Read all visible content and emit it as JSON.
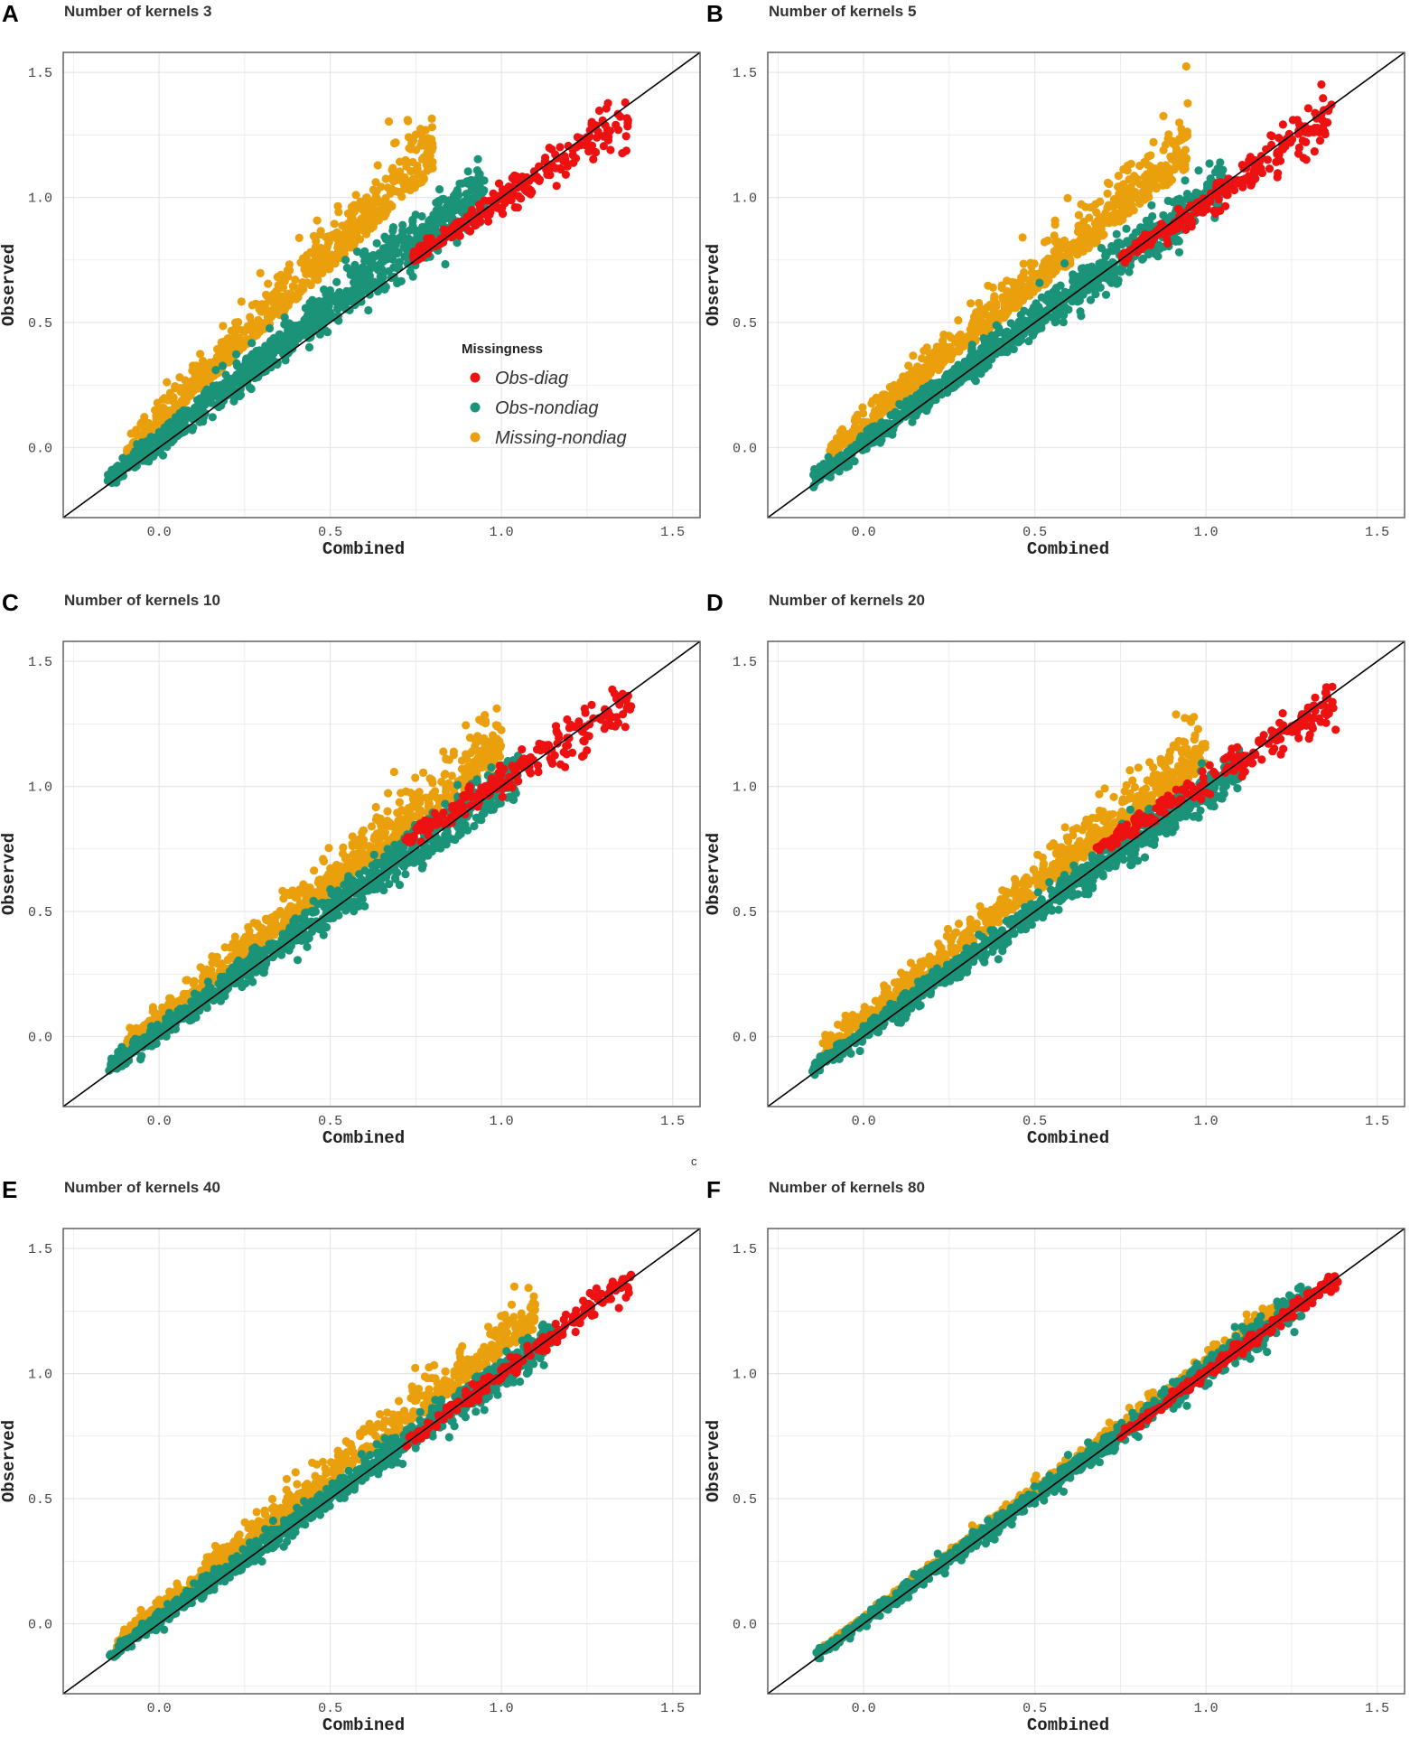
{
  "colors": {
    "obs_diag": "#ee1111",
    "obs_nondiag": "#1a9378",
    "missing_nondiag": "#eaa00c",
    "identity_line": "#000000",
    "grid": "#e6e6e6",
    "frame": "#555555"
  },
  "legend": {
    "title": "Missingness",
    "entries": [
      "Obs-diag",
      "Obs-nondiag",
      "Missing-nondiag"
    ]
  },
  "stray_mark": "c",
  "chart_data": [
    {
      "type": "scatter",
      "panel": "A",
      "title": "Number of kernels 3",
      "xlabel": "Combined",
      "ylabel": "Observed",
      "xlim": [
        -0.28,
        1.58
      ],
      "ylim": [
        -0.28,
        1.58
      ],
      "xticks": [
        "0.0",
        "0.5",
        "1.0",
        "1.5"
      ],
      "yticks": [
        "0.0",
        "0.5",
        "1.0",
        "1.5"
      ],
      "identity_line": true,
      "grid": true,
      "legend": "middle-right",
      "series": [
        {
          "name": "Obs-diag",
          "x_range": [
            0.74,
            1.37
          ],
          "y_center": [
            0.76,
            1.32
          ],
          "spread": 0.04
        },
        {
          "name": "Obs-nondiag",
          "x_range": [
            -0.15,
            0.95
          ],
          "y_center": [
            -0.13,
            1.04
          ],
          "spread": 0.05
        },
        {
          "name": "Missing-nondiag",
          "x_range": [
            -0.1,
            0.8
          ],
          "y_center": [
            -0.05,
            1.1
          ],
          "spread": 0.09
        }
      ]
    },
    {
      "type": "scatter",
      "panel": "B",
      "title": "Number of kernels 5",
      "xlabel": "Combined",
      "ylabel": "Observed",
      "xlim": [
        -0.28,
        1.58
      ],
      "ylim": [
        -0.28,
        1.58
      ],
      "xticks": [
        "0.0",
        "0.5",
        "1.0",
        "1.5"
      ],
      "yticks": [
        "0.0",
        "0.5",
        "1.0",
        "1.5"
      ],
      "identity_line": true,
      "grid": true,
      "series": [
        {
          "name": "Obs-diag",
          "x_range": [
            0.75,
            1.37
          ],
          "y_center": [
            0.75,
            1.33
          ],
          "spread": 0.04
        },
        {
          "name": "Obs-nondiag",
          "x_range": [
            -0.15,
            1.05
          ],
          "y_center": [
            -0.13,
            1.05
          ],
          "spread": 0.04
        },
        {
          "name": "Missing-nondiag",
          "x_range": [
            -0.1,
            0.95
          ],
          "y_center": [
            -0.05,
            1.12
          ],
          "spread": 0.09
        }
      ]
    },
    {
      "type": "scatter",
      "panel": "C",
      "title": "Number of kernels 10",
      "xlabel": "Combined",
      "ylabel": "Observed",
      "xlim": [
        -0.28,
        1.58
      ],
      "ylim": [
        -0.28,
        1.58
      ],
      "xticks": [
        "0.0",
        "0.5",
        "1.0",
        "1.5"
      ],
      "yticks": [
        "0.0",
        "0.5",
        "1.0",
        "1.5"
      ],
      "identity_line": true,
      "grid": true,
      "series": [
        {
          "name": "Obs-diag",
          "x_range": [
            0.72,
            1.38
          ],
          "y_center": [
            0.78,
            1.34
          ],
          "spread": 0.04
        },
        {
          "name": "Obs-nondiag",
          "x_range": [
            -0.15,
            1.05
          ],
          "y_center": [
            -0.13,
            1.05
          ],
          "spread": 0.04
        },
        {
          "name": "Missing-nondiag",
          "x_range": [
            -0.1,
            1.0
          ],
          "y_center": [
            -0.06,
            1.1
          ],
          "spread": 0.08
        }
      ]
    },
    {
      "type": "scatter",
      "panel": "D",
      "title": "Number of kernels 20",
      "xlabel": "Combined",
      "ylabel": "Observed",
      "xlim": [
        -0.28,
        1.58
      ],
      "ylim": [
        -0.28,
        1.58
      ],
      "xticks": [
        "0.0",
        "0.5",
        "1.0",
        "1.5"
      ],
      "yticks": [
        "0.0",
        "0.5",
        "1.0",
        "1.5"
      ],
      "identity_line": true,
      "grid": true,
      "series": [
        {
          "name": "Obs-diag",
          "x_range": [
            0.68,
            1.38
          ],
          "y_center": [
            0.75,
            1.34
          ],
          "spread": 0.035
        },
        {
          "name": "Obs-nondiag",
          "x_range": [
            -0.15,
            1.1
          ],
          "y_center": [
            -0.13,
            1.08
          ],
          "spread": 0.035
        },
        {
          "name": "Missing-nondiag",
          "x_range": [
            -0.12,
            1.0
          ],
          "y_center": [
            -0.08,
            1.08
          ],
          "spread": 0.08
        }
      ]
    },
    {
      "type": "scatter",
      "panel": "E",
      "title": "Number of kernels 40",
      "xlabel": "Combined",
      "ylabel": "Observed",
      "xlim": [
        -0.28,
        1.58
      ],
      "ylim": [
        -0.28,
        1.58
      ],
      "xticks": [
        "0.0",
        "0.5",
        "1.0",
        "1.5"
      ],
      "yticks": [
        "0.0",
        "0.5",
        "1.0",
        "1.5"
      ],
      "identity_line": true,
      "grid": true,
      "series": [
        {
          "name": "Obs-diag",
          "x_range": [
            0.72,
            1.38
          ],
          "y_center": [
            0.72,
            1.38
          ],
          "spread": 0.025
        },
        {
          "name": "Obs-nondiag",
          "x_range": [
            -0.15,
            1.15
          ],
          "y_center": [
            -0.13,
            1.15
          ],
          "spread": 0.03
        },
        {
          "name": "Missing-nondiag",
          "x_range": [
            -0.13,
            1.1
          ],
          "y_center": [
            -0.1,
            1.18
          ],
          "spread": 0.06
        }
      ]
    },
    {
      "type": "scatter",
      "panel": "F",
      "title": "Number of kernels 80",
      "xlabel": "Combined",
      "ylabel": "Observed",
      "xlim": [
        -0.28,
        1.58
      ],
      "ylim": [
        -0.28,
        1.58
      ],
      "xticks": [
        "0.0",
        "0.5",
        "1.0",
        "1.5"
      ],
      "yticks": [
        "0.0",
        "0.5",
        "1.0",
        "1.5"
      ],
      "identity_line": true,
      "grid": true,
      "series": [
        {
          "name": "Obs-diag",
          "x_range": [
            0.75,
            1.39
          ],
          "y_center": [
            0.75,
            1.39
          ],
          "spread": 0.015
        },
        {
          "name": "Obs-nondiag",
          "x_range": [
            -0.15,
            1.3
          ],
          "y_center": [
            -0.14,
            1.31
          ],
          "spread": 0.025
        },
        {
          "name": "Missing-nondiag",
          "x_range": [
            -0.12,
            1.2
          ],
          "y_center": [
            -0.11,
            1.22
          ],
          "spread": 0.025
        }
      ]
    }
  ]
}
